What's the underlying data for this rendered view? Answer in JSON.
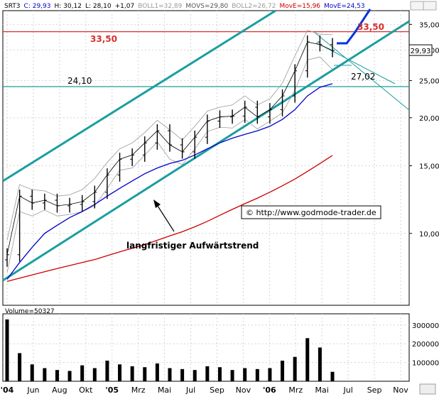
{
  "header": {
    "parts": [
      {
        "text": "SRT3",
        "color": "#000000"
      },
      {
        "text": "C: 29,93",
        "color": "#0000cc"
      },
      {
        "text": "H: 30,12",
        "color": "#000000"
      },
      {
        "text": "L: 28,10",
        "color": "#000000"
      },
      {
        "text": "+1,07",
        "color": "#000000"
      },
      {
        "text": "BOLL1=32,89",
        "color": "#999999"
      },
      {
        "text": "MOVS=29,80",
        "color": "#555555"
      },
      {
        "text": "BOLL2=26,72",
        "color": "#999999"
      },
      {
        "text": "MovE=15,96",
        "color": "#cc0000"
      },
      {
        "text": "MovE=24,53",
        "color": "#0000cc"
      }
    ]
  },
  "colors": {
    "background": "#ffffff",
    "grid": "#d4d4d4",
    "trendline": "#1a9e9e",
    "horizontal_resistance": "#d63030",
    "horizontal_support": "#1a9e9e",
    "price_bars": "#000000",
    "moving_average_fast": "#0000cc",
    "moving_average_slow": "#cc0000",
    "bollinger": "#999999",
    "projection": "#0033dd",
    "last_price_box": "#ffffff",
    "volume": "#000000"
  },
  "chart_data": [
    {
      "type": "line",
      "title": "",
      "scale": "log",
      "ylim": [
        6.5,
        38
      ],
      "y_ticks": [
        {
          "value": 35,
          "label": "35,00"
        },
        {
          "value": 30,
          "label": "30,00"
        },
        {
          "value": 25,
          "label": "25,00"
        },
        {
          "value": 20,
          "label": "20,00"
        },
        {
          "value": 15,
          "label": "15,00"
        },
        {
          "value": 10,
          "label": "10,00"
        }
      ],
      "x_ticks": [
        "'04",
        "Jun",
        "Aug",
        "Okt",
        "'05",
        "Mrz",
        "Mai",
        "Jul",
        "Sep",
        "Nov",
        "'06",
        "Mrz",
        "Mai",
        "Jul",
        "Sep",
        "Nov"
      ],
      "last_price_label": "29,93",
      "price_levels": [
        {
          "value": 33.5,
          "label": "33,50"
        },
        {
          "value": 24.1,
          "label": "24,10"
        }
      ],
      "annotations": [
        {
          "text": "33,50"
        },
        {
          "text": "24,10"
        },
        {
          "text": "27,02"
        },
        {
          "text": "langfristiger Aufwärtstrend"
        },
        {
          "text": "© http://www.godmode-trader.de"
        }
      ],
      "x": [
        "Apr 04",
        "Mai 04",
        "Jun 04",
        "Jul 04",
        "Aug 04",
        "Sep 04",
        "Okt 04",
        "Nov 04",
        "Dez 04",
        "Jan 05",
        "Feb 05",
        "Mrz 05",
        "Apr 05",
        "Mai 05",
        "Jun 05",
        "Jul 05",
        "Aug 05",
        "Sep 05",
        "Okt 05",
        "Nov 05",
        "Dez 05",
        "Jan 06",
        "Feb 06",
        "Mrz 06",
        "Apr 06",
        "Mai 06",
        "Jun 06"
      ],
      "series": [
        {
          "name": "SRT3",
          "values": [
            8.8,
            12.5,
            12.0,
            12.2,
            11.8,
            11.9,
            12.1,
            12.8,
            14.2,
            15.6,
            16.0,
            17.2,
            18.5,
            17.0,
            16.3,
            17.8,
            19.6,
            20.1,
            20.2,
            21.3,
            20.1,
            21.0,
            22.8,
            26.5,
            31.5,
            31.0,
            29.93
          ]
        },
        {
          "name": "MovE=24,53",
          "values": [
            7.6,
            8.4,
            9.2,
            10.0,
            10.5,
            11.0,
            11.4,
            11.9,
            12.5,
            13.1,
            13.7,
            14.3,
            14.8,
            15.2,
            15.5,
            16.0,
            16.6,
            17.2,
            17.7,
            18.1,
            18.5,
            19.0,
            19.8,
            21.0,
            22.8,
            24.0,
            24.53
          ]
        },
        {
          "name": "MovE=15,96",
          "values": [
            7.5,
            7.65,
            7.8,
            7.95,
            8.1,
            8.25,
            8.4,
            8.55,
            8.75,
            8.95,
            9.15,
            9.35,
            9.6,
            9.85,
            10.1,
            10.4,
            10.75,
            11.15,
            11.55,
            11.95,
            12.35,
            12.8,
            13.3,
            13.85,
            14.5,
            15.2,
            15.96
          ]
        },
        {
          "name": "BOLL1=32,89",
          "values": [
            9.6,
            13.4,
            13.0,
            12.9,
            12.5,
            12.6,
            13.0,
            13.9,
            15.3,
            16.6,
            17.2,
            18.3,
            19.7,
            18.6,
            17.5,
            19.0,
            20.8,
            21.3,
            21.6,
            22.8,
            21.6,
            22.4,
            24.6,
            29.0,
            33.8,
            33.0,
            32.89
          ]
        },
        {
          "name": "BOLL2=26,72",
          "values": [
            7.9,
            11.4,
            11.1,
            11.5,
            11.1,
            11.2,
            11.4,
            11.8,
            13.1,
            14.6,
            14.8,
            16.0,
            17.3,
            15.6,
            15.1,
            16.6,
            18.4,
            18.9,
            18.8,
            19.8,
            18.7,
            19.6,
            20.6,
            23.6,
            28.3,
            28.8,
            26.72
          ]
        }
      ]
    },
    {
      "type": "bar",
      "title": "Volume=50327",
      "ylim": [
        0,
        360000
      ],
      "y_ticks": [
        {
          "value": 300000,
          "label": "300000"
        },
        {
          "value": 200000,
          "label": "200000"
        },
        {
          "value": 100000,
          "label": "100000"
        }
      ],
      "categories": [
        "Apr 04",
        "Mai 04",
        "Jun 04",
        "Jul 04",
        "Aug 04",
        "Sep 04",
        "Okt 04",
        "Nov 04",
        "Dez 04",
        "Jan 05",
        "Feb 05",
        "Mrz 05",
        "Apr 05",
        "Mai 05",
        "Jun 05",
        "Jul 05",
        "Aug 05",
        "Sep 05",
        "Okt 05",
        "Nov 05",
        "Dez 05",
        "Jan 06",
        "Feb 06",
        "Mrz 06",
        "Apr 06",
        "Mai 06",
        "Jun 06"
      ],
      "values": [
        330000,
        150000,
        90000,
        70000,
        60000,
        55000,
        85000,
        70000,
        110000,
        90000,
        80000,
        75000,
        95000,
        70000,
        65000,
        60000,
        80000,
        75000,
        60000,
        70000,
        65000,
        70000,
        110000,
        130000,
        230000,
        180000,
        50327
      ]
    }
  ]
}
